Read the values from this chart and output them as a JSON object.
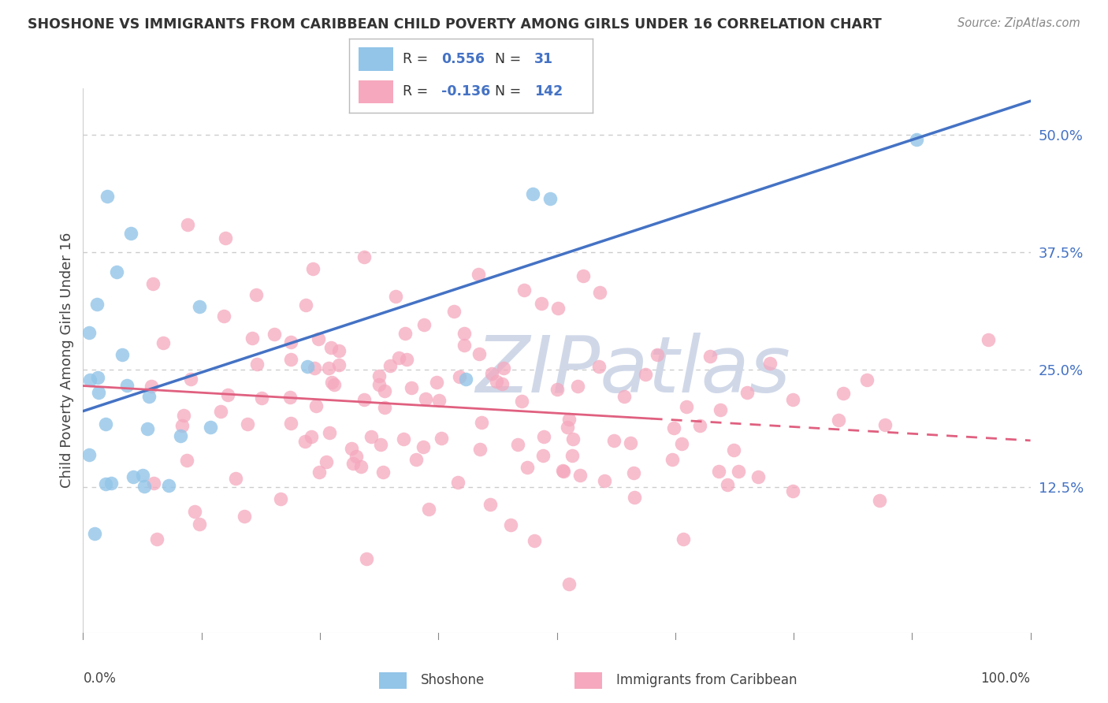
{
  "title": "SHOSHONE VS IMMIGRANTS FROM CARIBBEAN CHILD POVERTY AMONG GIRLS UNDER 16 CORRELATION CHART",
  "source": "Source: ZipAtlas.com",
  "ylabel": "Child Poverty Among Girls Under 16",
  "ytick_values": [
    0.125,
    0.25,
    0.375,
    0.5
  ],
  "ytick_labels": [
    "12.5%",
    "25.0%",
    "37.5%",
    "50.0%"
  ],
  "xlim_left_label": "0.0%",
  "xlim_right_label": "100.0%",
  "shoshone_label": "Shoshone",
  "caribbean_label": "Immigrants from Caribbean",
  "shoshone_color": "#92C5E8",
  "caribbean_color": "#F5A8BE",
  "shoshone_line_color": "#4472C4",
  "caribbean_line_color": "#E06080",
  "right_tick_color": "#4472C4",
  "legend_val_color": "#4472C4",
  "shoshone_R_str": "0.556",
  "shoshone_N_str": "31",
  "caribbean_R_str": "-0.136",
  "caribbean_N_str": "142",
  "watermark_color": "#d8d8d8",
  "grid_color": "#cccccc",
  "background_color": "#ffffff",
  "xlim": [
    0.0,
    1.0
  ],
  "ylim": [
    -0.03,
    0.55
  ]
}
